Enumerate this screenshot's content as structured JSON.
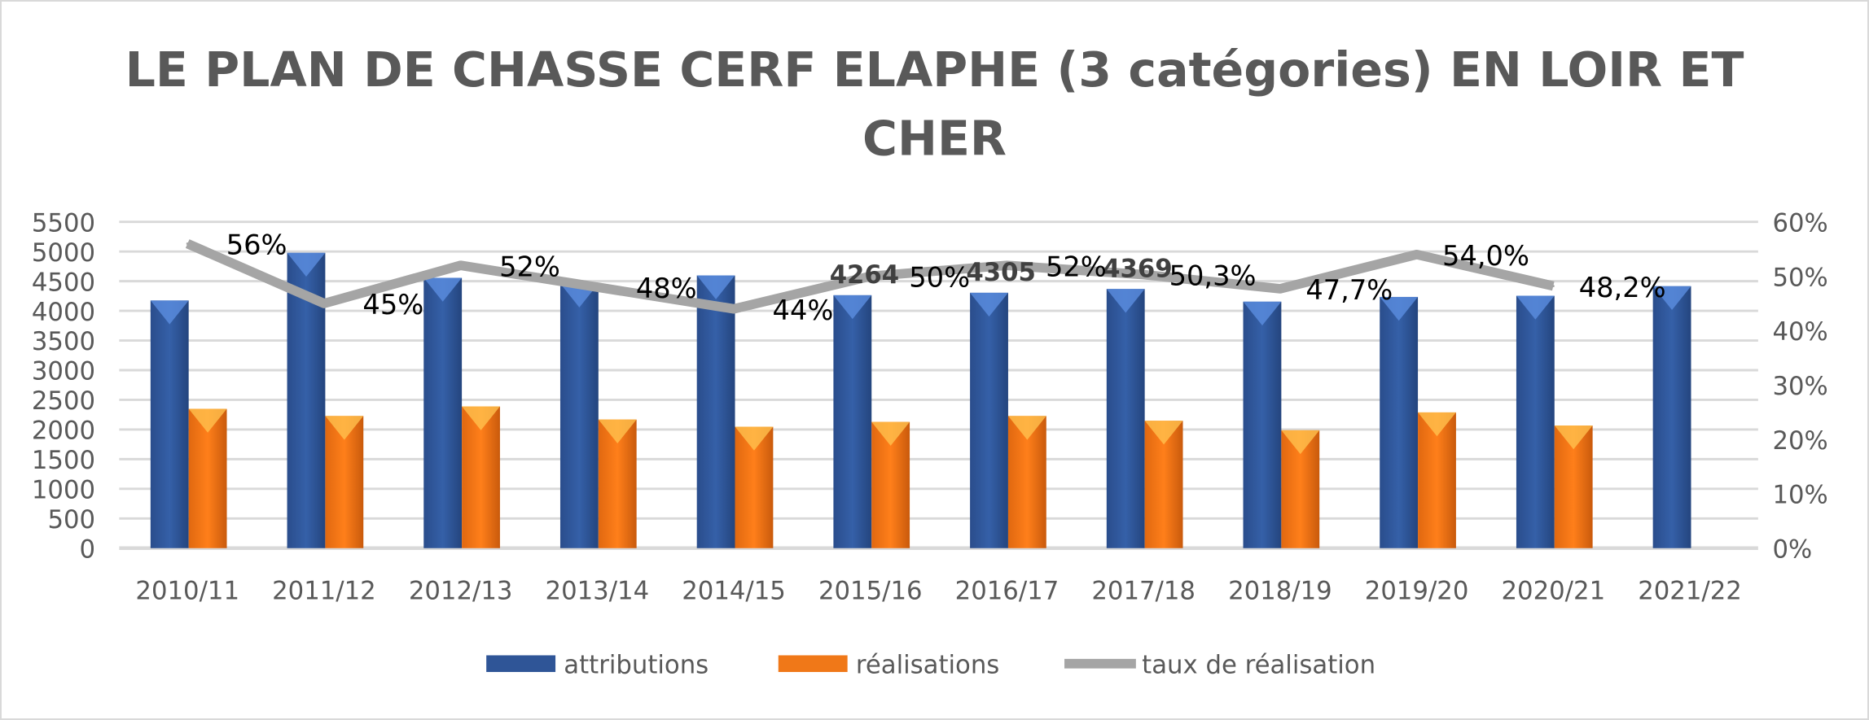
{
  "chart_data": {
    "type": "bar",
    "title_lines": [
      "LE PLAN DE CHASSE CERF ELAPHE (3 catégories) EN LOIR ET",
      "CHER"
    ],
    "categories": [
      "2010/11",
      "2011/12",
      "2012/13",
      "2013/14",
      "2014/15",
      "2015/16",
      "2016/17",
      "2017/18",
      "2018/19",
      "2019/20",
      "2020/21",
      "2021/22"
    ],
    "series": [
      {
        "name": "attributions",
        "type": "bar",
        "axis": "left",
        "color": "#2F5597",
        "values": [
          4175,
          4978,
          4557,
          4460,
          4597,
          4264,
          4305,
          4369,
          4155,
          4235,
          4255,
          4416
        ],
        "data_labels": [
          null,
          null,
          null,
          null,
          null,
          "4264",
          "4305",
          "4369",
          null,
          null,
          null,
          null
        ]
      },
      {
        "name": "réalisations",
        "type": "bar",
        "axis": "right_bar",
        "color": "#F07818",
        "values": [
          2349,
          2228,
          2389,
          2168,
          2047,
          2128,
          2228,
          2148,
          1987,
          2288,
          2067,
          null
        ]
      },
      {
        "name": "taux de réalisation",
        "type": "line",
        "axis": "right",
        "color": "#A5A5A5",
        "values": [
          56,
          45,
          52,
          48,
          44,
          50,
          52,
          50.3,
          47.7,
          54.0,
          48.2,
          null
        ],
        "data_labels": [
          "56%",
          "45%",
          "52%",
          "48%",
          "44%",
          "50%",
          "52%",
          "50,3%",
          "47,7%",
          "54,0%",
          "48,2%",
          null
        ]
      }
    ],
    "y_left": {
      "ylim": [
        0,
        5500
      ],
      "ticks": [
        "0",
        "500",
        "1000",
        "1500",
        "2000",
        "2500",
        "3000",
        "3500",
        "4000",
        "4500",
        "5000",
        "5500"
      ]
    },
    "y_right": {
      "ylim": [
        0,
        60
      ],
      "ticks": [
        "0%",
        "10%",
        "20%",
        "30%",
        "40%",
        "50%",
        "60%"
      ]
    },
    "grid": true,
    "legend": "bottom"
  }
}
